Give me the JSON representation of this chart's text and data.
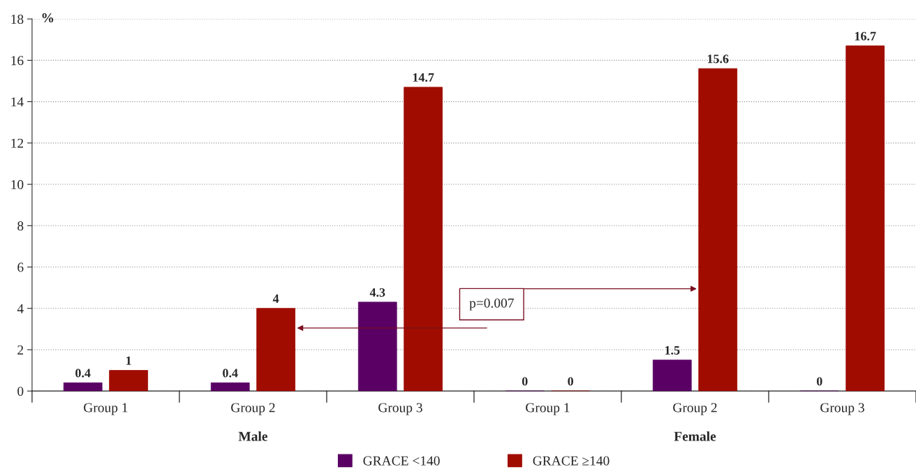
{
  "chart_data": {
    "type": "bar",
    "ylabel": "%",
    "categories": [
      "Group 1",
      "Group 2",
      "Group 3",
      "Group 1",
      "Group 2",
      "Group 3"
    ],
    "series": [
      {
        "name": "GRACE <140",
        "color": "#5a0064",
        "values": [
          0.4,
          0.4,
          4.3,
          0,
          1.5,
          0
        ]
      },
      {
        "name": "GRACE ≥140",
        "color": "#a00c00",
        "values": [
          1,
          4,
          14.7,
          0,
          15.6,
          16.7
        ]
      }
    ],
    "ylim": [
      0,
      18
    ],
    "yticks": [
      0,
      2,
      4,
      6,
      8,
      10,
      12,
      14,
      16,
      18
    ],
    "grid": "y",
    "legend": "bottom",
    "data_labels": true,
    "annotations": [
      "Male",
      "Female",
      "p=0.007"
    ]
  }
}
